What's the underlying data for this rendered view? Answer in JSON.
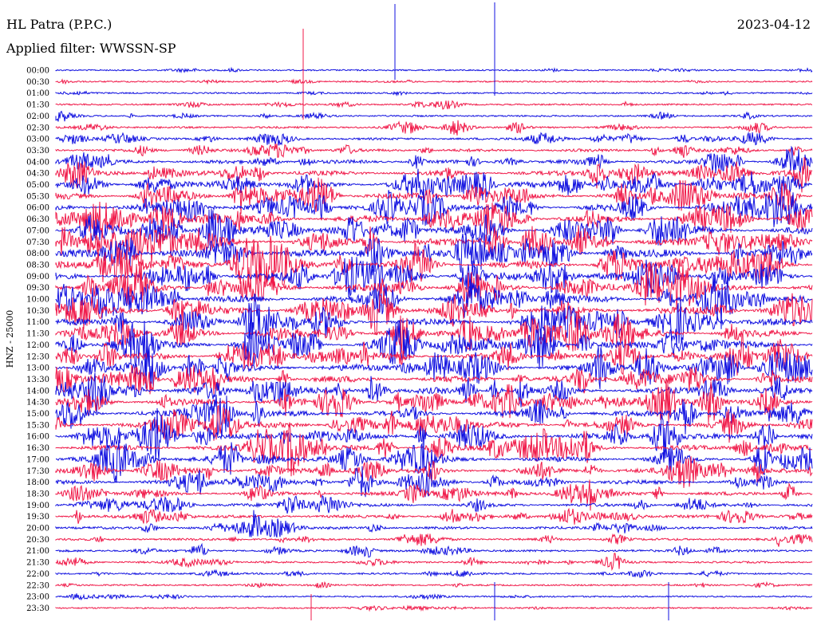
{
  "header": {
    "station": "HL Patra (P.P.C.)",
    "date": "2023-04-12",
    "filter": "Applied filter: WWSSN-SP",
    "side_label": "HNZ - 25000"
  },
  "colors": {
    "trace_a": "#1010e0",
    "trace_b": "#f01848",
    "text": "#000000"
  },
  "chart_data": {
    "type": "line",
    "title": "HL Patra (P.P.C.)",
    "subtitle": "Applied filter: WWSSN-SP",
    "ylabel": "HNZ - 25000",
    "xlabel": "",
    "row_labels": [
      "00:00",
      "00:30",
      "01:00",
      "01:30",
      "02:00",
      "02:30",
      "03:00",
      "03:30",
      "04:00",
      "04:30",
      "05:00",
      "05:30",
      "06:00",
      "06:30",
      "07:00",
      "07:30",
      "08:00",
      "08:30",
      "09:00",
      "09:30",
      "10:00",
      "10:30",
      "11:00",
      "11:30",
      "12:00",
      "12:30",
      "13:00",
      "13:30",
      "14:00",
      "14:30",
      "15:00",
      "15:30",
      "16:00",
      "16:30",
      "17:00",
      "17:30",
      "18:00",
      "18:30",
      "19:00",
      "19:30",
      "20:00",
      "20:30",
      "21:00",
      "21:30",
      "22:00",
      "22:30",
      "23:00",
      "23:30"
    ],
    "row_activity": [
      0.1,
      0.1,
      0.12,
      0.18,
      0.22,
      0.28,
      0.35,
      0.45,
      0.55,
      0.65,
      0.75,
      0.8,
      0.85,
      0.85,
      0.88,
      0.88,
      0.9,
      0.9,
      0.9,
      0.88,
      0.88,
      0.85,
      0.85,
      0.85,
      0.85,
      0.85,
      0.85,
      0.8,
      0.8,
      0.8,
      0.75,
      0.75,
      0.75,
      0.7,
      0.68,
      0.65,
      0.6,
      0.55,
      0.5,
      0.45,
      0.4,
      0.35,
      0.32,
      0.28,
      0.22,
      0.18,
      0.15,
      0.12
    ],
    "grid": false
  }
}
